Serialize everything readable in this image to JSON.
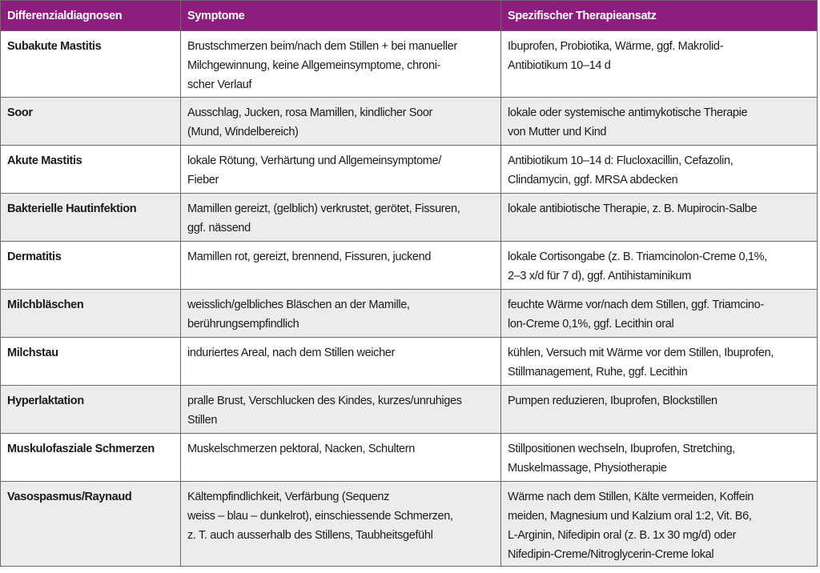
{
  "header": {
    "col1": "Differenzialdiagnosen",
    "col2": "Symptome",
    "col3": "Spezifischer Therapieansatz"
  },
  "colors": {
    "header_bg": "#8e1e7e",
    "alt_row": "#ececec",
    "border": "#6a6a6a"
  },
  "rows": [
    {
      "diagnosis": "Subakute Mastitis",
      "symptoms": [
        "Brustschmerzen beim/nach dem Stillen + bei manueller",
        "Milchgewinnung, keine Allgemeinsymptome, chroni-",
        "scher Verlauf"
      ],
      "therapy": [
        "Ibuprofen, Probiotika, Wärme, ggf. Makrolid-",
        "Antibiotikum 10–14 d"
      ]
    },
    {
      "diagnosis": "Soor",
      "symptoms": [
        "Ausschlag, Jucken, rosa Mamillen, kindlicher Soor",
        "(Mund, Windelbereich)"
      ],
      "therapy": [
        "lokale oder systemische antimykotische Therapie",
        "von Mutter und Kind"
      ]
    },
    {
      "diagnosis": "Akute Mastitis",
      "symptoms": [
        "lokale Rötung, Verhärtung und Allgemeinsymptome/",
        "Fieber"
      ],
      "therapy": [
        "Antibiotikum 10–14 d: Flucloxacillin, Cefazolin,",
        "Clindamycin, ggf. MRSA abdecken"
      ]
    },
    {
      "diagnosis": "Bakterielle Hautinfektion",
      "symptoms": [
        "Mamillen gereizt, (gelblich) verkrustet, gerötet, Fissuren,",
        "ggf. nässend"
      ],
      "therapy": [
        "lokale antibiotische Therapie, z. B. Mupirocin-Salbe"
      ]
    },
    {
      "diagnosis": "Dermatitis",
      "symptoms": [
        "Mamillen rot, gereizt, brennend, Fissuren, juckend"
      ],
      "therapy": [
        "lokale Cortisongabe (z. B. Triamcinolon-Creme 0,1%,",
        "2–3 x/d für 7 d), ggf. Antihistaminikum"
      ]
    },
    {
      "diagnosis": "Milchbläschen",
      "symptoms": [
        "weisslich/gelbliches Bläschen an der Mamille,",
        "berührungsempfindlich"
      ],
      "therapy": [
        "feuchte Wärme vor/nach dem Stillen, ggf. Triamcino-",
        "lon-Creme 0,1%, ggf. Lecithin oral"
      ]
    },
    {
      "diagnosis": "Milchstau",
      "symptoms": [
        "induriertes Areal, nach dem Stillen weicher"
      ],
      "therapy": [
        "kühlen, Versuch mit Wärme vor dem Stillen, Ibuprofen,",
        "Stillmanagement, Ruhe, ggf. Lecithin"
      ]
    },
    {
      "diagnosis": "Hyperlaktation",
      "symptoms": [
        "pralle Brust, Verschlucken des Kindes, kurzes/unruhiges",
        "Stillen"
      ],
      "therapy": [
        "Pumpen reduzieren, Ibuprofen, Blockstillen"
      ]
    },
    {
      "diagnosis": "Muskulofasziale Schmerzen",
      "symptoms": [
        "Muskelschmerzen pektoral, Nacken, Schultern"
      ],
      "therapy": [
        "Stillpositionen wechseln, Ibuprofen, Stretching,",
        "Muskelmassage, Physiotherapie"
      ]
    },
    {
      "diagnosis": "Vasospasmus/Raynaud",
      "symptoms": [
        "Kältempfindlichkeit, Verfärbung (Sequenz",
        "weiss – blau – dunkelrot), einschiessende Schmerzen,",
        "z. T. auch ausserhalb des Stillens, Taubheitsgefühl"
      ],
      "therapy": [
        "Wärme nach dem Stillen, Kälte vermeiden, Koffein",
        "meiden, Magnesium und Kalzium oral 1:2, Vit. B6,",
        "L-Arginin, Nifedipin oral (z. B. 1x 30 mg/d) oder",
        "Nifedipin-Creme/Nitroglycerin-Creme lokal"
      ]
    }
  ]
}
